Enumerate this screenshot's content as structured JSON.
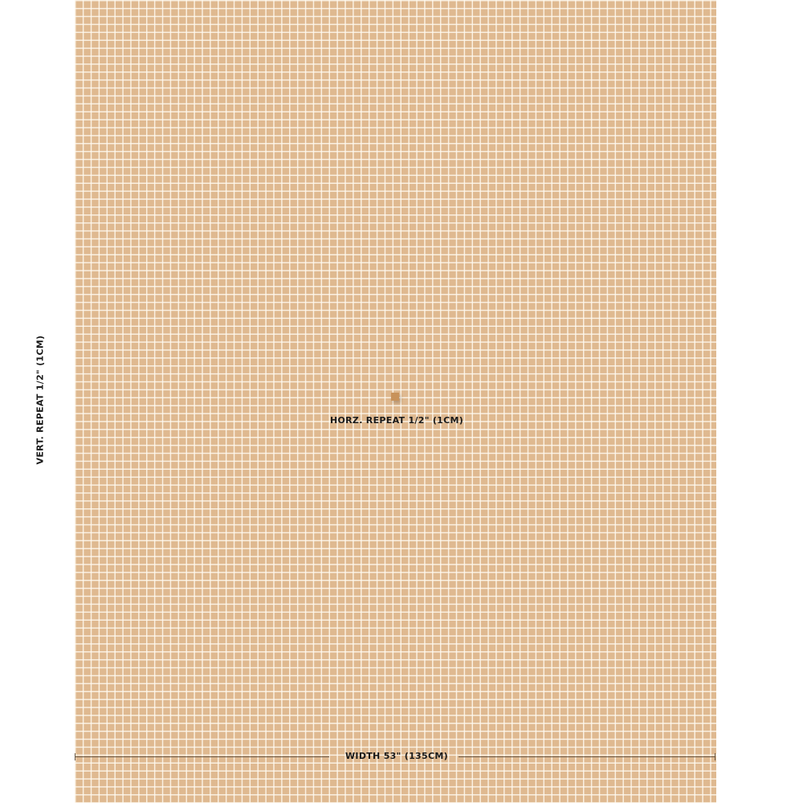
{
  "swatch": {
    "background_color": "#dfb990",
    "grid_line_color": "#fffaf0",
    "chip_color": "#c8925a"
  },
  "labels": {
    "horizontal_repeat": "HORZ. REPEAT 1/2\" (1CM)",
    "vertical_repeat": "VERT. REPEAT 1/2\" (1CM)",
    "width": "WIDTH 53\" (135CM)"
  }
}
